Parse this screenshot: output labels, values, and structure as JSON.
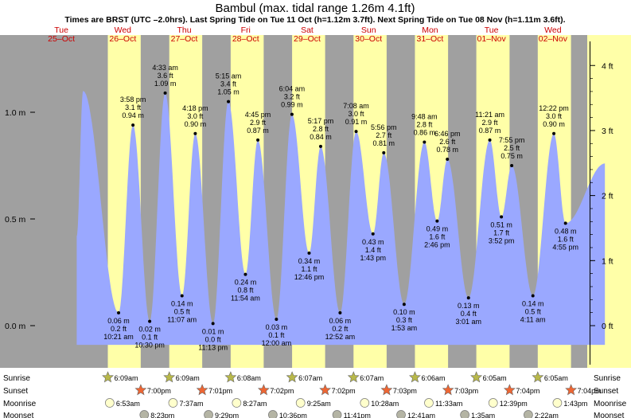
{
  "header": {
    "title": "Bambul (max. tidal range 1.26m 4.1ft)",
    "subtitle": "Times are BRST (UTC –2.0hrs). Last Spring Tide on Tue 11 Oct (h=1.12m 3.7ft). Next Spring Tide on Tue 08 Nov (h=1.11m 3.6ft)."
  },
  "colors": {
    "night": "#a0a0a0",
    "day": "#ffffa8",
    "tide_fill": "#9aa8ff",
    "day_label": "#cc0000",
    "sun_star": "#b8b84a",
    "sunset_star": "#ee6633",
    "moonrise": "#ffffcc",
    "moonset": "#b4b4a4"
  },
  "days": [
    {
      "dow": "Tue",
      "date": "25–Oct"
    },
    {
      "dow": "Wed",
      "date": "26–Oct"
    },
    {
      "dow": "Thu",
      "date": "27–Oct"
    },
    {
      "dow": "Fri",
      "date": "28–Oct"
    },
    {
      "dow": "Sat",
      "date": "29–Oct"
    },
    {
      "dow": "Sun",
      "date": "30–Oct"
    },
    {
      "dow": "Mon",
      "date": "31–Oct"
    },
    {
      "dow": "Tue",
      "date": "01–Nov"
    },
    {
      "dow": "Wed",
      "date": "02–Nov"
    }
  ],
  "chart_data": {
    "type": "area",
    "title": "Bambul (max. tidal range 1.26m 4.1ft)",
    "x_unit": "hours since 25-Oct 00:00 BRST",
    "y_left_ticks": [
      "1.0 m",
      "0.5 m",
      "0.0 m"
    ],
    "y_left_values": [
      1.0,
      0.5,
      0.0
    ],
    "y_right_ticks": [
      "4 ft",
      "3 ft",
      "2 ft",
      "1 ft",
      "0 ft"
    ],
    "y_right_values_ft": [
      4,
      3,
      2,
      1,
      0
    ],
    "ylim_m": [
      -0.09,
      1.26
    ],
    "curve_start": {
      "t": 18.0,
      "h": 0.42
    },
    "curve_end": {
      "t": 224.3,
      "h": 0.76
    },
    "first_peak": {
      "t": 20.5,
      "h": 1.1
    },
    "tides": [
      {
        "t": 34.35,
        "h": 0.06,
        "m": "0.06 m",
        "ft": "0.2 ft",
        "time": "10:21 am",
        "kind": "low"
      },
      {
        "t": 39.97,
        "h": 0.94,
        "m": "0.94 m",
        "ft": "3.1 ft",
        "time": "3:58 pm",
        "kind": "high"
      },
      {
        "t": 46.5,
        "h": 0.02,
        "m": "0.02 m",
        "ft": "0.1 ft",
        "time": "10:30 pm",
        "kind": "low"
      },
      {
        "t": 52.55,
        "h": 1.09,
        "m": "1.09 m",
        "ft": "3.6 ft",
        "time": "4:33 am",
        "kind": "high"
      },
      {
        "t": 59.12,
        "h": 0.14,
        "m": "0.14 m",
        "ft": "0.5 ft",
        "time": "11:07 am",
        "kind": "low"
      },
      {
        "t": 64.3,
        "h": 0.9,
        "m": "0.90 m",
        "ft": "3.0 ft",
        "time": "4:18 pm",
        "kind": "high"
      },
      {
        "t": 71.22,
        "h": 0.01,
        "m": "0.01 m",
        "ft": "0.0 ft",
        "time": "11:13 pm",
        "kind": "low"
      },
      {
        "t": 77.25,
        "h": 1.05,
        "m": "1.05 m",
        "ft": "3.4 ft",
        "time": "5:15 am",
        "kind": "high"
      },
      {
        "t": 83.9,
        "h": 0.24,
        "m": "0.24 m",
        "ft": "0.8 ft",
        "time": "11:54 am",
        "kind": "low"
      },
      {
        "t": 88.75,
        "h": 0.87,
        "m": "0.87 m",
        "ft": "2.9 ft",
        "time": "4:45 pm",
        "kind": "high"
      },
      {
        "t": 96.0,
        "h": 0.03,
        "m": "0.03 m",
        "ft": "0.1 ft",
        "time": "12:00 am",
        "kind": "low"
      },
      {
        "t": 102.07,
        "h": 0.99,
        "m": "0.99 m",
        "ft": "3.2 ft",
        "time": "6:04 am",
        "kind": "high"
      },
      {
        "t": 108.77,
        "h": 0.34,
        "m": "0.34 m",
        "ft": "1.1 ft",
        "time": "12:46 pm",
        "kind": "low"
      },
      {
        "t": 113.28,
        "h": 0.84,
        "m": "0.84 m",
        "ft": "2.8 ft",
        "time": "5:17 pm",
        "kind": "high"
      },
      {
        "t": 120.87,
        "h": 0.06,
        "m": "0.06 m",
        "ft": "0.2 ft",
        "time": "12:52 am",
        "kind": "low"
      },
      {
        "t": 127.13,
        "h": 0.91,
        "m": "0.91 m",
        "ft": "3.0 ft",
        "time": "7:08 am",
        "kind": "high"
      },
      {
        "t": 133.72,
        "h": 0.43,
        "m": "0.43 m",
        "ft": "1.4 ft",
        "time": "1:43 pm",
        "kind": "low"
      },
      {
        "t": 137.93,
        "h": 0.81,
        "m": "0.81 m",
        "ft": "2.7 ft",
        "time": "5:56 pm",
        "kind": "high"
      },
      {
        "t": 145.88,
        "h": 0.1,
        "m": "0.10 m",
        "ft": "0.3 ft",
        "time": "1:53 am",
        "kind": "low"
      },
      {
        "t": 153.8,
        "h": 0.86,
        "m": "0.86 m",
        "ft": "2.8 ft",
        "time": "9:48 am",
        "kind": "high"
      },
      {
        "t": 158.77,
        "h": 0.49,
        "m": "0.49 m",
        "ft": "1.6 ft",
        "time": "2:46 pm",
        "kind": "low"
      },
      {
        "t": 162.77,
        "h": 0.78,
        "m": "0.78 m",
        "ft": "2.6 ft",
        "time": "6:46 pm",
        "kind": "high"
      },
      {
        "t": 171.02,
        "h": 0.13,
        "m": "0.13 m",
        "ft": "0.4 ft",
        "time": "3:01 am",
        "kind": "low"
      },
      {
        "t": 179.35,
        "h": 0.87,
        "m": "0.87 m",
        "ft": "2.9 ft",
        "time": "11:21 am",
        "kind": "high"
      },
      {
        "t": 183.87,
        "h": 0.51,
        "m": "0.51 m",
        "ft": "1.7 ft",
        "time": "3:52 pm",
        "kind": "low"
      },
      {
        "t": 187.92,
        "h": 0.75,
        "m": "0.75 m",
        "ft": "2.5 ft",
        "time": "7:55 pm",
        "kind": "high"
      },
      {
        "t": 196.18,
        "h": 0.14,
        "m": "0.14 m",
        "ft": "0.5 ft",
        "time": "4:11 am",
        "kind": "low"
      },
      {
        "t": 204.37,
        "h": 0.9,
        "m": "0.90 m",
        "ft": "3.0 ft",
        "time": "12:22 pm",
        "kind": "high"
      },
      {
        "t": 208.92,
        "h": 0.48,
        "m": "0.48 m",
        "ft": "1.6 ft",
        "time": "4:55 pm",
        "kind": "low"
      }
    ]
  },
  "sun_moon": {
    "row_labels": [
      "Sunrise",
      "Sunset",
      "Moonrise",
      "Moonset"
    ],
    "sunrise": [
      {
        "t": 30.15,
        "label": "6:09am"
      },
      {
        "t": 54.15,
        "label": "6:09am"
      },
      {
        "t": 78.13,
        "label": "6:08am"
      },
      {
        "t": 102.12,
        "label": "6:07am"
      },
      {
        "t": 126.12,
        "label": "6:07am"
      },
      {
        "t": 150.1,
        "label": "6:06am"
      },
      {
        "t": 174.08,
        "label": "6:05am"
      },
      {
        "t": 198.08,
        "label": "6:05am"
      }
    ],
    "sunset": [
      {
        "t": 43.0,
        "label": "7:00pm"
      },
      {
        "t": 67.02,
        "label": "7:01pm"
      },
      {
        "t": 91.03,
        "label": "7:02pm"
      },
      {
        "t": 115.03,
        "label": "7:02pm"
      },
      {
        "t": 139.05,
        "label": "7:03pm"
      },
      {
        "t": 163.05,
        "label": "7:03pm"
      },
      {
        "t": 187.07,
        "label": "7:04pm"
      },
      {
        "t": 211.07,
        "label": "7:04pm"
      }
    ],
    "moonrise": [
      {
        "t": 30.88,
        "label": "6:53am"
      },
      {
        "t": 55.62,
        "label": "7:37am"
      },
      {
        "t": 80.45,
        "label": "8:27am"
      },
      {
        "t": 105.42,
        "label": "9:25am"
      },
      {
        "t": 130.47,
        "label": "10:28am"
      },
      {
        "t": 155.55,
        "label": "11:33am"
      },
      {
        "t": 180.65,
        "label": "12:39pm"
      },
      {
        "t": 205.72,
        "label": "1:43pm"
      }
    ],
    "moonset": [
      {
        "t": 44.38,
        "label": "8:23pm"
      },
      {
        "t": 69.48,
        "label": "9:29pm"
      },
      {
        "t": 94.6,
        "label": "10:36pm"
      },
      {
        "t": 119.68,
        "label": "11:41pm"
      },
      {
        "t": 144.68,
        "label": "12:41am"
      },
      {
        "t": 169.58,
        "label": "1:35am"
      },
      {
        "t": 194.37,
        "label": "2:22am"
      }
    ]
  }
}
